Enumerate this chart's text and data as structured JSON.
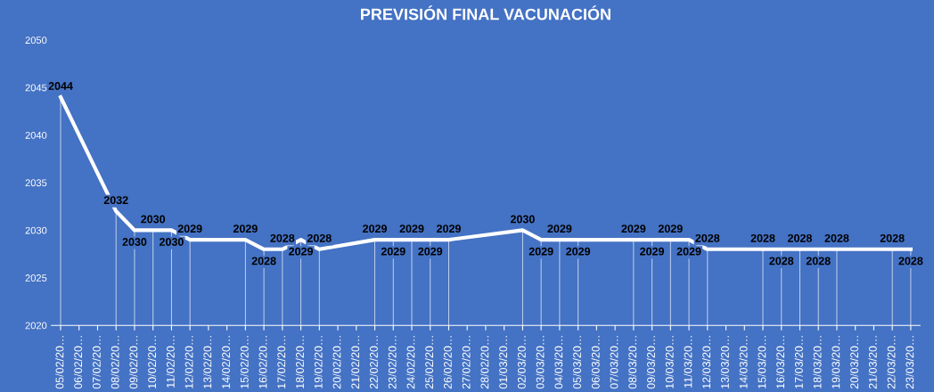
{
  "chart_data": {
    "type": "line",
    "title": "PREVISIÓN FINAL VACUNACIÓN",
    "categories": [
      "05/02/20…",
      "06/02/20…",
      "07/02/20…",
      "08/02/20…",
      "09/02/20…",
      "10/02/20…",
      "11/02/20…",
      "12/02/20…",
      "13/02/20…",
      "14/02/20…",
      "15/02/20…",
      "16/02/20…",
      "17/02/20…",
      "18/02/20…",
      "19/02/20…",
      "20/02/20…",
      "21/02/20…",
      "22/02/20…",
      "23/02/20…",
      "24/02/20…",
      "25/02/20…",
      "26/02/20…",
      "27/02/20…",
      "28/02/20…",
      "01/03/20…",
      "02/03/20…",
      "03/03/20…",
      "04/03/20…",
      "05/03/20…",
      "06/03/20…",
      "07/03/20…",
      "08/03/20…",
      "09/03/20…",
      "10/03/20…",
      "11/03/20…",
      "12/03/20…",
      "13/03/20…",
      "14/03/20…",
      "15/03/20…",
      "16/03/20…",
      "17/03/20…",
      "18/03/20…",
      "19/03/20…",
      "20/03/20…",
      "21/03/20…",
      "22/03/20…",
      "23/03/20…"
    ],
    "series": [
      {
        "color": "#ffffff",
        "values": [
          2044,
          null,
          null,
          2032,
          2030,
          2030,
          2030,
          2029,
          null,
          null,
          2029,
          2028,
          2028,
          2029,
          2028,
          null,
          null,
          2029,
          2029,
          2029,
          2029,
          2029,
          null,
          null,
          null,
          2030,
          2029,
          2029,
          2029,
          null,
          null,
          2029,
          2029,
          2029,
          2029,
          2028,
          null,
          null,
          2028,
          2028,
          2028,
          2028,
          2028,
          null,
          null,
          2028,
          2028
        ]
      }
    ],
    "ylim": [
      2020,
      2050
    ],
    "yticks": [
      2020,
      2025,
      2030,
      2035,
      2040,
      2045,
      2050
    ],
    "data_labels": true,
    "grid": false,
    "legend": false,
    "marker": "none",
    "line_style": "solid"
  }
}
